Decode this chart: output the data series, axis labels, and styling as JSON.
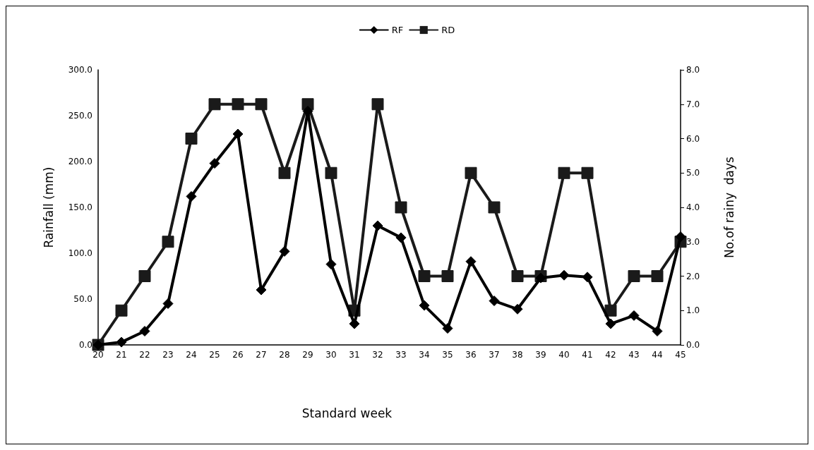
{
  "chart_data": {
    "type": "line",
    "xlabel": "Standard week",
    "ylabel": "Rainfall (mm)",
    "y2label": "No.of rainy  days",
    "categories": [
      "20",
      "21",
      "22",
      "23",
      "24",
      "25",
      "26",
      "27",
      "28",
      "29",
      "30",
      "31",
      "32",
      "33",
      "34",
      "35",
      "36",
      "37",
      "38",
      "39",
      "40",
      "41",
      "42",
      "43",
      "44",
      "45"
    ],
    "series": [
      {
        "name": "RF",
        "color": "#000000",
        "marker": "diamond",
        "values": [
          0,
          3,
          15,
          45,
          162,
          198,
          230,
          60,
          102,
          255,
          88,
          23,
          130,
          117,
          43,
          18,
          91,
          48,
          39,
          73,
          76,
          74,
          23,
          32,
          15,
          118
        ]
      },
      {
        "name": "RD",
        "color": "#1a1a1a",
        "marker": "square",
        "axis": "y2",
        "values": [
          0,
          1,
          2,
          3,
          6,
          7,
          7,
          7,
          5,
          7,
          5,
          1,
          7,
          4,
          2,
          2,
          5,
          4,
          2,
          2,
          5,
          5,
          1,
          2,
          2,
          3
        ]
      }
    ],
    "ylim": [
      0,
      300
    ],
    "yticks": [
      {
        "value": 0,
        "label": "0.0"
      },
      {
        "value": 50,
        "label": "50.0"
      },
      {
        "value": 100,
        "label": "100.0"
      },
      {
        "value": 150,
        "label": "150.0"
      },
      {
        "value": 200,
        "label": "200.0"
      },
      {
        "value": 250,
        "label": "250.0"
      },
      {
        "value": 300,
        "label": "300.0"
      }
    ],
    "y2lim": [
      0,
      8
    ],
    "y2ticks": [
      {
        "value": 0,
        "label": "0.0"
      },
      {
        "value": 1,
        "label": "1.0"
      },
      {
        "value": 2,
        "label": "2.0"
      },
      {
        "value": 3,
        "label": "3.0"
      },
      {
        "value": 4,
        "label": "4.0"
      },
      {
        "value": 5,
        "label": "5.0"
      },
      {
        "value": 6,
        "label": "6.0"
      },
      {
        "value": 7,
        "label": "7.0"
      },
      {
        "value": 8,
        "label": "8.0"
      }
    ],
    "grid": false,
    "legend": "top",
    "line_style": "solid"
  }
}
